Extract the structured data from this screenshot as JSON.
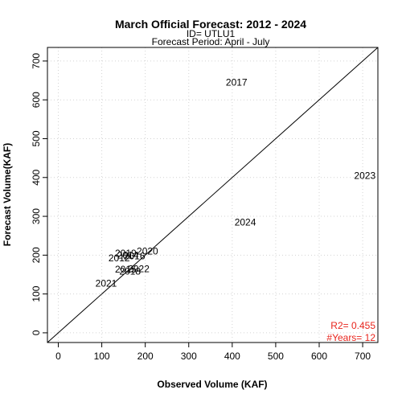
{
  "chart_data": {
    "type": "scatter",
    "title": "March Official Forecast: 2012 - 2024",
    "subtitle_lines": [
      "ID= UTLU1",
      "Forecast Period:  April - July"
    ],
    "xlabel": "Observed Volume (KAF)",
    "ylabel": "Forecast Volume(KAF)",
    "xlim": [
      -25,
      735
    ],
    "ylim": [
      -25,
      735
    ],
    "xticks": [
      0,
      100,
      200,
      300,
      400,
      500,
      600,
      700
    ],
    "yticks": [
      0,
      100,
      200,
      300,
      400,
      500,
      600,
      700
    ],
    "grid": true,
    "reference_line": "1:1",
    "points": [
      {
        "label": "2017",
        "x": 410,
        "y": 645
      },
      {
        "label": "2023",
        "x": 705,
        "y": 405
      },
      {
        "label": "2024",
        "x": 430,
        "y": 285
      },
      {
        "label": "2020",
        "x": 205,
        "y": 210
      },
      {
        "label": "2019",
        "x": 155,
        "y": 205
      },
      {
        "label": "2014",
        "x": 160,
        "y": 200
      },
      {
        "label": "2016",
        "x": 175,
        "y": 198
      },
      {
        "label": "2012",
        "x": 140,
        "y": 192
      },
      {
        "label": "2022",
        "x": 185,
        "y": 165
      },
      {
        "label": "2015",
        "x": 155,
        "y": 163
      },
      {
        "label": "2018",
        "x": 165,
        "y": 158
      },
      {
        "label": "2021",
        "x": 110,
        "y": 127
      }
    ],
    "stats": {
      "r2": "R2=  0.455",
      "years": "#Years=  12"
    }
  },
  "colors": {
    "stats": "#e8241c",
    "grid": "#d3d3d3",
    "axis": "#000000"
  }
}
